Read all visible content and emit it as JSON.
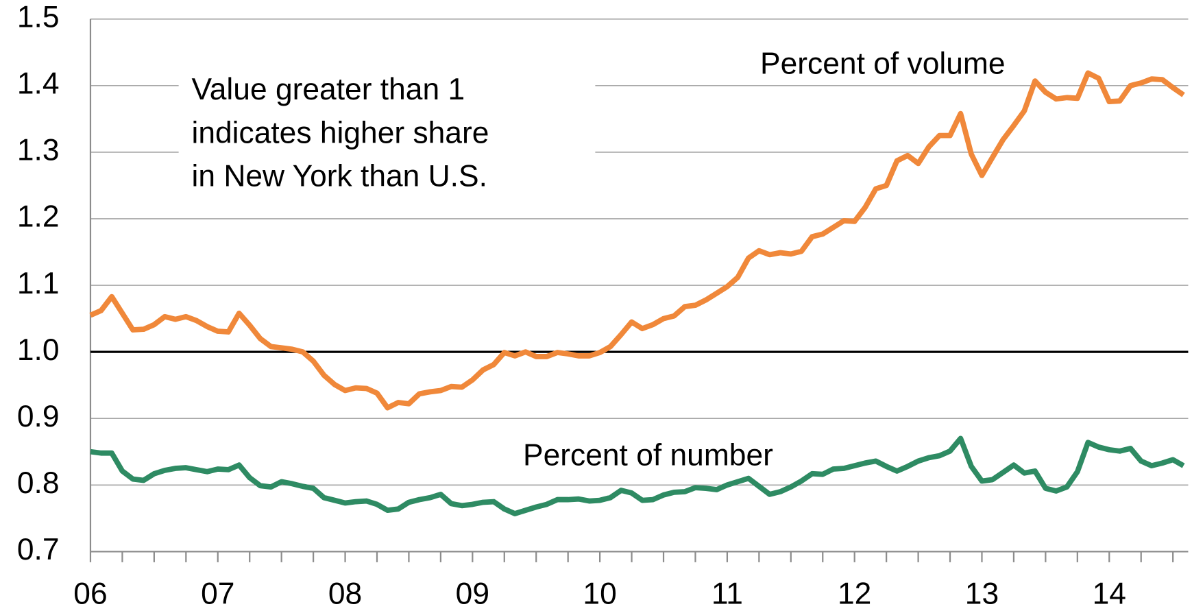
{
  "chart_data": {
    "type": "line",
    "annotation": [
      "Value greater than 1",
      "indicates higher share",
      "in New York than U.S."
    ],
    "x": [
      2006,
      2006.083,
      2006.167,
      2006.25,
      2006.333,
      2006.417,
      2006.5,
      2006.583,
      2006.667,
      2006.75,
      2006.833,
      2006.917,
      2007,
      2007.083,
      2007.167,
      2007.25,
      2007.333,
      2007.417,
      2007.5,
      2007.583,
      2007.667,
      2007.75,
      2007.833,
      2007.917,
      2008,
      2008.083,
      2008.167,
      2008.25,
      2008.333,
      2008.417,
      2008.5,
      2008.583,
      2008.667,
      2008.75,
      2008.833,
      2008.917,
      2009,
      2009.083,
      2009.167,
      2009.25,
      2009.333,
      2009.417,
      2009.5,
      2009.583,
      2009.667,
      2009.75,
      2009.833,
      2009.917,
      2010,
      2010.083,
      2010.167,
      2010.25,
      2010.333,
      2010.417,
      2010.5,
      2010.583,
      2010.667,
      2010.75,
      2010.833,
      2010.917,
      2011,
      2011.083,
      2011.167,
      2011.25,
      2011.333,
      2011.417,
      2011.5,
      2011.583,
      2011.667,
      2011.75,
      2011.833,
      2011.917,
      2012,
      2012.083,
      2012.167,
      2012.25,
      2012.333,
      2012.417,
      2012.5,
      2012.583,
      2012.667,
      2012.75,
      2012.833,
      2012.917,
      2013,
      2013.083,
      2013.167,
      2013.25,
      2013.333,
      2013.417,
      2013.5,
      2013.583,
      2013.667,
      2013.75,
      2013.833,
      2013.917,
      2014,
      2014.083,
      2014.167,
      2014.25,
      2014.333,
      2014.417,
      2014.5,
      2014.583
    ],
    "series": [
      {
        "name": "Percent of volume",
        "color": "#f0883a",
        "values": [
          1.055,
          1.062,
          1.083,
          1.058,
          1.033,
          1.034,
          1.041,
          1.053,
          1.049,
          1.053,
          1.047,
          1.038,
          1.031,
          1.03,
          1.058,
          1.04,
          1.02,
          1.008,
          1.006,
          1.004,
          1.0,
          0.986,
          0.965,
          0.951,
          0.942,
          0.946,
          0.945,
          0.938,
          0.916,
          0.924,
          0.922,
          0.937,
          0.94,
          0.942,
          0.948,
          0.947,
          0.958,
          0.973,
          0.981,
          0.999,
          0.994,
          1.0,
          0.993,
          0.993,
          0.999,
          0.997,
          0.994,
          0.994,
          0.999,
          1.008,
          1.026,
          1.045,
          1.035,
          1.041,
          1.05,
          1.054,
          1.068,
          1.07,
          1.078,
          1.088,
          1.098,
          1.112,
          1.141,
          1.152,
          1.146,
          1.149,
          1.147,
          1.151,
          1.173,
          1.177,
          1.187,
          1.197,
          1.196,
          1.217,
          1.245,
          1.25,
          1.287,
          1.295,
          1.283,
          1.308,
          1.325,
          1.325,
          1.358,
          1.297,
          1.265,
          1.292,
          1.319,
          1.34,
          1.362,
          1.407,
          1.39,
          1.38,
          1.382,
          1.381,
          1.419,
          1.411,
          1.376,
          1.377,
          1.4,
          1.404,
          1.41,
          1.409,
          1.397,
          1.386
        ]
      },
      {
        "name": "Percent of number",
        "color": "#2e8b63",
        "values": [
          0.85,
          0.848,
          0.848,
          0.821,
          0.809,
          0.807,
          0.817,
          0.822,
          0.825,
          0.826,
          0.823,
          0.82,
          0.824,
          0.823,
          0.83,
          0.811,
          0.799,
          0.797,
          0.805,
          0.802,
          0.798,
          0.795,
          0.781,
          0.777,
          0.773,
          0.775,
          0.776,
          0.771,
          0.762,
          0.764,
          0.774,
          0.778,
          0.781,
          0.786,
          0.772,
          0.769,
          0.771,
          0.774,
          0.775,
          0.764,
          0.757,
          0.762,
          0.767,
          0.771,
          0.778,
          0.778,
          0.779,
          0.776,
          0.777,
          0.781,
          0.792,
          0.788,
          0.777,
          0.778,
          0.785,
          0.789,
          0.79,
          0.796,
          0.795,
          0.793,
          0.8,
          0.805,
          0.81,
          0.798,
          0.786,
          0.79,
          0.797,
          0.806,
          0.817,
          0.816,
          0.824,
          0.825,
          0.829,
          0.833,
          0.836,
          0.828,
          0.821,
          0.828,
          0.836,
          0.841,
          0.844,
          0.851,
          0.87,
          0.828,
          0.806,
          0.808,
          0.819,
          0.83,
          0.818,
          0.821,
          0.795,
          0.791,
          0.797,
          0.82,
          0.864,
          0.857,
          0.853,
          0.851,
          0.855,
          0.836,
          0.829,
          0.833,
          0.838,
          0.829
        ]
      }
    ],
    "xlim": [
      2006,
      2014.62
    ],
    "xticks": [
      {
        "value": 2006,
        "label": "06"
      },
      {
        "value": 2007,
        "label": "07"
      },
      {
        "value": 2008,
        "label": "08"
      },
      {
        "value": 2009,
        "label": "09"
      },
      {
        "value": 2010,
        "label": "10"
      },
      {
        "value": 2011,
        "label": "11"
      },
      {
        "value": 2012,
        "label": "12"
      },
      {
        "value": 2013,
        "label": "13"
      },
      {
        "value": 2014,
        "label": "14"
      }
    ],
    "xminorticks": [
      2006.25,
      2006.5,
      2006.75,
      2007.25,
      2007.5,
      2007.75,
      2008.25,
      2008.5,
      2008.75,
      2009.25,
      2009.5,
      2009.75,
      2010.25,
      2010.5,
      2010.75,
      2011.25,
      2011.5,
      2011.75,
      2012.25,
      2012.5,
      2012.75,
      2013.25,
      2013.5,
      2013.75,
      2014.25,
      2014.5
    ],
    "ylim": [
      0.7,
      1.5
    ],
    "yticks": [
      0.7,
      0.8,
      0.9,
      {
        "value": 1,
        "label": "1.0"
      },
      1.1,
      1.2,
      1.3,
      1.4,
      1.5
    ],
    "reference_line": 1,
    "grid": true
  }
}
